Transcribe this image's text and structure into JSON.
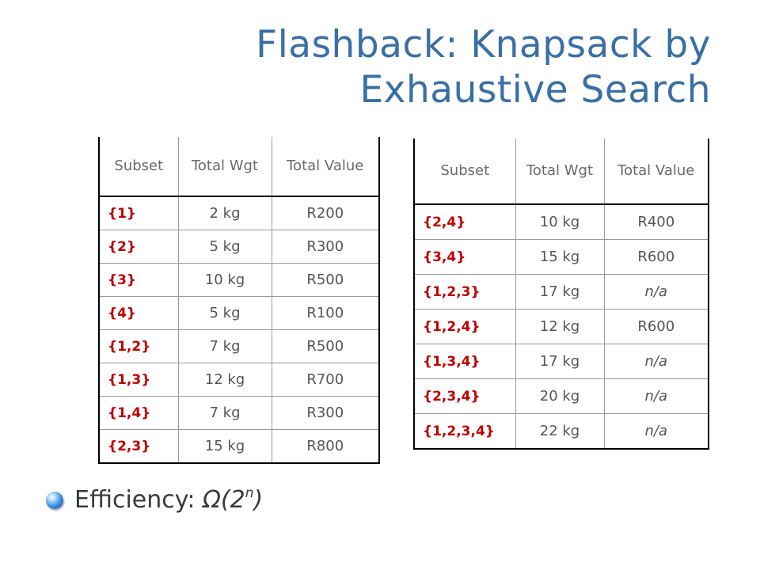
{
  "slide": {
    "title_line1": "Flashback:  Knapsack by",
    "title_line2": "Exhaustive Search"
  },
  "table_left": {
    "headers": [
      "Subset",
      "Total Wgt",
      "Total Value"
    ],
    "rows": [
      {
        "subset": "{1}",
        "weight": "2 kg",
        "value": "R200"
      },
      {
        "subset": "{2}",
        "weight": "5 kg",
        "value": "R300"
      },
      {
        "subset": "{3}",
        "weight": "10 kg",
        "value": "R500"
      },
      {
        "subset": "{4}",
        "weight": "5 kg",
        "value": "R100"
      },
      {
        "subset": "{1,2}",
        "weight": "7 kg",
        "value": "R500"
      },
      {
        "subset": "{1,3}",
        "weight": "12 kg",
        "value": "R700"
      },
      {
        "subset": "{1,4}",
        "weight": "7 kg",
        "value": "R300"
      },
      {
        "subset": "{2,3}",
        "weight": "15 kg",
        "value": "R800"
      }
    ]
  },
  "table_right": {
    "headers": [
      "Subset",
      "Total Wgt",
      "Total Value"
    ],
    "rows": [
      {
        "subset": "{2,4}",
        "weight": "10 kg",
        "value": "R400"
      },
      {
        "subset": "{3,4}",
        "weight": "15 kg",
        "value": "R600"
      },
      {
        "subset": "{1,2,3}",
        "weight": "17 kg",
        "value": "n/a"
      },
      {
        "subset": "{1,2,4}",
        "weight": "12 kg",
        "value": "R600"
      },
      {
        "subset": "{1,3,4}",
        "weight": "17 kg",
        "value": "n/a"
      },
      {
        "subset": "{2,3,4}",
        "weight": "20 kg",
        "value": "n/a"
      },
      {
        "subset": "{1,2,3,4}",
        "weight": "22 kg",
        "value": "n/a"
      }
    ]
  },
  "bullet": {
    "label": "Efficiency: ",
    "omega": "Ω(2",
    "exponent": "n",
    "close": ")"
  },
  "colors": {
    "title": "#3a6fa6",
    "subset_text": "#c00000",
    "body_text": "#555555"
  }
}
